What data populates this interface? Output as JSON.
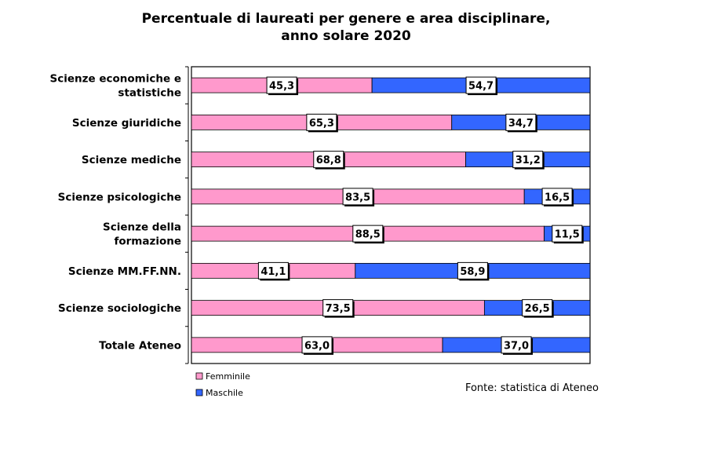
{
  "chart_data": {
    "type": "bar",
    "orientation": "horizontal",
    "stacked": true,
    "title_lines": [
      "Percentuale di laureati per genere e area disciplinare,",
      "anno solare 2020"
    ],
    "categories": [
      [
        "Scienze economiche e",
        "statistiche"
      ],
      [
        "Scienze giuridiche"
      ],
      [
        "Scienze mediche"
      ],
      [
        "Scienze psicologiche"
      ],
      [
        "Scienze della",
        "formazione"
      ],
      [
        "Scienze MM.FF.NN."
      ],
      [
        "Scienze sociologiche"
      ],
      [
        "Totale Ateneo"
      ]
    ],
    "series": [
      {
        "name": "Femminile",
        "color": "#ff99cc",
        "values": [
          45.3,
          65.3,
          68.8,
          83.5,
          88.5,
          41.1,
          73.5,
          63.0
        ],
        "labels": [
          "45,3",
          "65,3",
          "68,8",
          "83,5",
          "88,5",
          "41,1",
          "73,5",
          "63,0"
        ]
      },
      {
        "name": "Maschile",
        "color": "#3366ff",
        "values": [
          54.7,
          34.7,
          31.2,
          16.5,
          11.5,
          58.9,
          26.5,
          37.0
        ],
        "labels": [
          "54,7",
          "34,7",
          "31,2",
          "16,5",
          "11,5",
          "58,9",
          "26,5",
          "37,0"
        ]
      }
    ],
    "xlim": [
      0,
      100
    ],
    "grid": false,
    "legend_position": "bottom-left",
    "source": "Fonte: statistica di Ateneo"
  }
}
